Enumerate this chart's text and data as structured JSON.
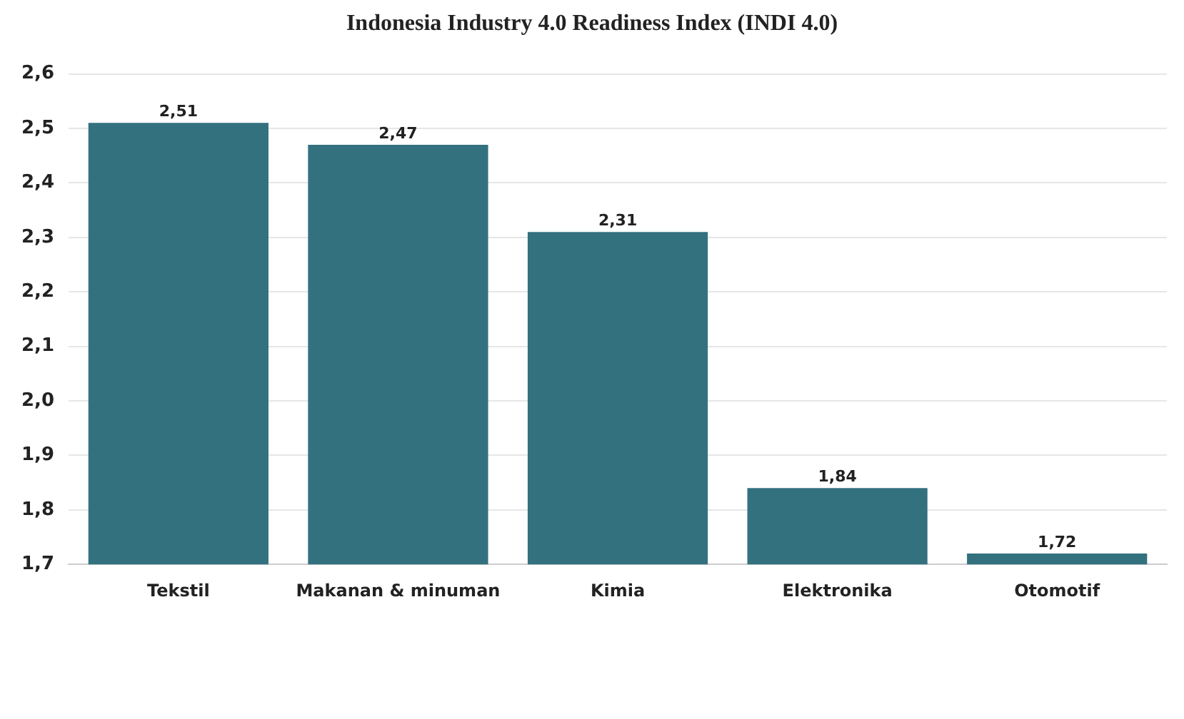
{
  "chart_data": {
    "type": "bar",
    "title": "Indonesia Industry 4.0 Readiness Index (INDI 4.0)",
    "categories": [
      "Tekstil",
      "Makanan & minuman",
      "Kimia",
      "Elektronika",
      "Otomotif"
    ],
    "values": [
      2.51,
      2.47,
      2.31,
      1.84,
      1.72
    ],
    "value_labels": [
      "2,51",
      "2,47",
      "2,31",
      "1,84",
      "1,72"
    ],
    "color": "#33717f",
    "ylim": [
      1.7,
      2.6
    ],
    "yticks": [
      {
        "value": 1.7,
        "label": "1,7"
      },
      {
        "value": 1.8,
        "label": "1,8"
      },
      {
        "value": 1.9,
        "label": "1,9"
      },
      {
        "value": 2.0,
        "label": "2,0"
      },
      {
        "value": 2.1,
        "label": "2,1"
      },
      {
        "value": 2.2,
        "label": "2,2"
      },
      {
        "value": 2.3,
        "label": "2,3"
      },
      {
        "value": 2.4,
        "label": "2,4"
      },
      {
        "value": 2.5,
        "label": "2,5"
      },
      {
        "value": 2.6,
        "label": "2,6"
      }
    ],
    "grid": "y",
    "legend": false
  }
}
